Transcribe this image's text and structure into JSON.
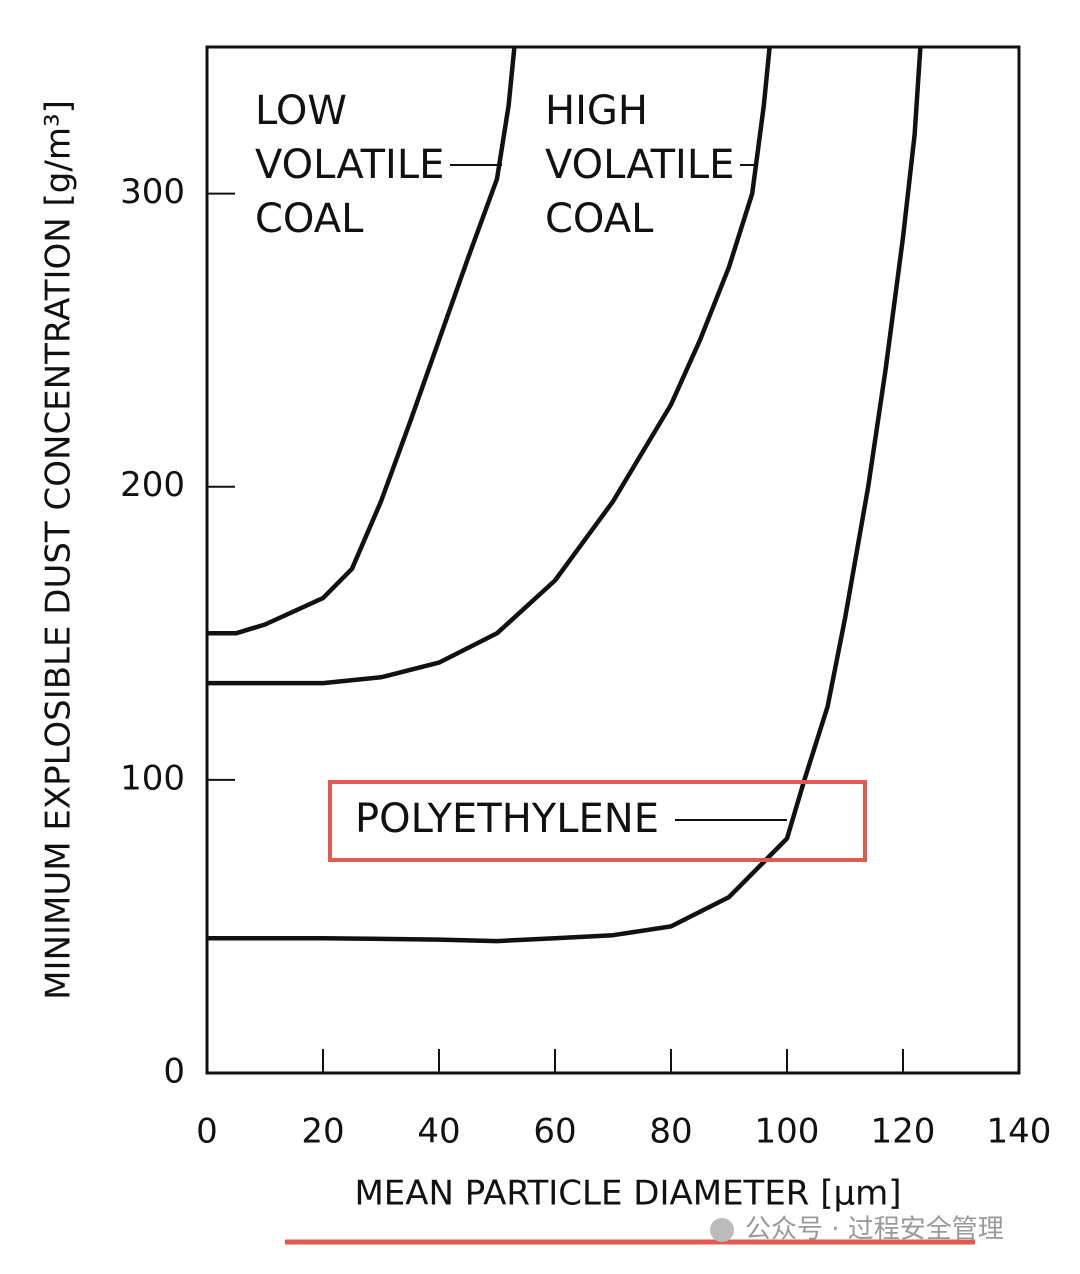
{
  "chart_data": {
    "type": "line",
    "y_label": "MINIMUM EXPLOSIBLE DUST CONCENTRATION [g/m³]",
    "x_label": "MEAN PARTICLE DIAMETER [µm]",
    "xlim": [
      0,
      140
    ],
    "ylim": [
      0,
      350
    ],
    "xticks": [
      0,
      20,
      40,
      60,
      80,
      100,
      120,
      140
    ],
    "yticks": [
      0,
      100,
      200,
      300
    ],
    "color": "#111111",
    "series": [
      {
        "label_lines": [
          "LOW",
          "VOLATILE",
          "COAL"
        ],
        "x": [
          0,
          5,
          10,
          20,
          25,
          30,
          35,
          40,
          45,
          50,
          52,
          53
        ],
        "values": [
          150,
          150,
          153,
          162,
          172,
          195,
          222,
          250,
          278,
          305,
          330,
          350
        ]
      },
      {
        "label_lines": [
          "HIGH",
          "VOLATILE",
          "COAL"
        ],
        "x": [
          0,
          10,
          20,
          30,
          40,
          50,
          60,
          70,
          80,
          85,
          90,
          94,
          96,
          97
        ],
        "values": [
          133,
          133,
          133,
          135,
          140,
          150,
          168,
          195,
          228,
          250,
          275,
          300,
          330,
          350
        ]
      },
      {
        "label_lines": [
          "POLYETHYLENE"
        ],
        "x": [
          0,
          20,
          40,
          50,
          60,
          70,
          80,
          90,
          95,
          100,
          103,
          107,
          110,
          114,
          117,
          120,
          122,
          123
        ],
        "values": [
          46,
          46,
          45.5,
          45,
          46,
          47,
          50,
          60,
          70,
          80,
          100,
          125,
          155,
          200,
          240,
          285,
          320,
          350
        ]
      }
    ],
    "highlight_color": "#e05a50",
    "watermark": "公众号 · 过程安全管理"
  }
}
